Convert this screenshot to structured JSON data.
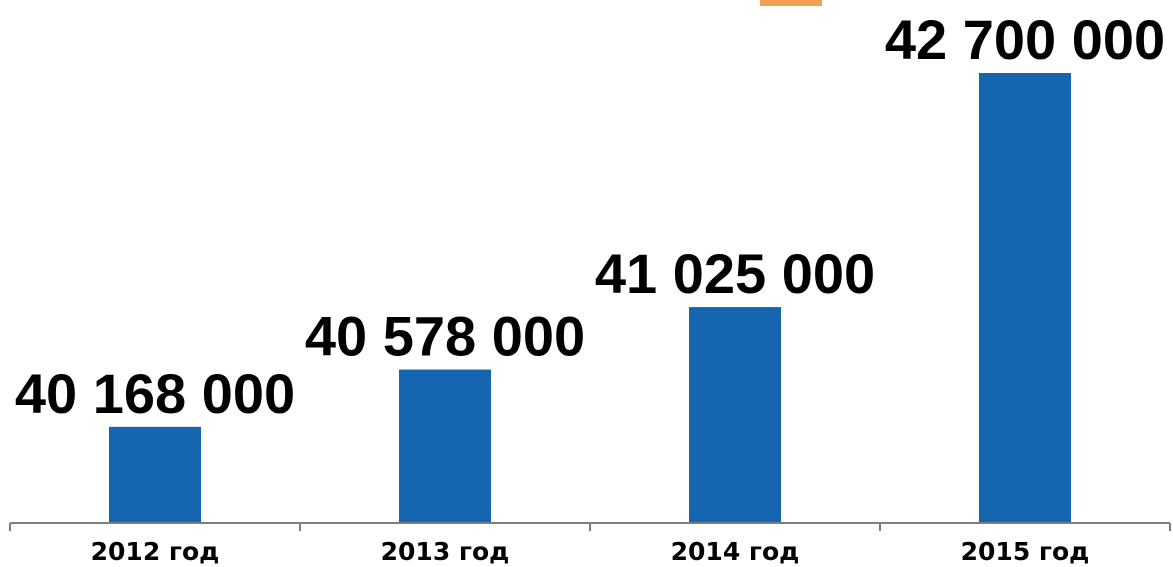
{
  "chart_data": {
    "type": "bar",
    "categories": [
      "2012 год",
      "2013 год",
      "2014 год",
      "2015 год"
    ],
    "values": [
      40168000,
      40578000,
      41025000,
      42700000
    ],
    "data_labels": [
      "40 168 000",
      "40 578 000",
      "41 025 000",
      "42 700 000"
    ],
    "bar_color": "#1565b0",
    "grid": false,
    "legend": "none"
  }
}
